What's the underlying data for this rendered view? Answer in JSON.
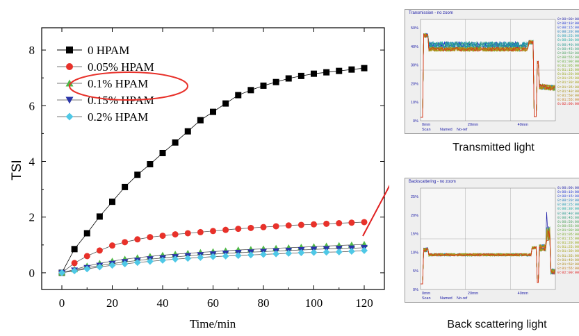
{
  "chart_data": {
    "type": "line",
    "xlabel": "Time/min",
    "ylabel": "TSI",
    "xlim": [
      -8,
      128
    ],
    "ylim": [
      -0.6,
      8.8
    ],
    "xticks": [
      0,
      20,
      40,
      60,
      80,
      100,
      120
    ],
    "yticks": [
      0,
      2,
      4,
      6,
      8
    ],
    "x": [
      0,
      5,
      10,
      15,
      20,
      25,
      30,
      35,
      40,
      45,
      50,
      55,
      60,
      65,
      70,
      75,
      80,
      85,
      90,
      95,
      100,
      105,
      110,
      115,
      120
    ],
    "series": [
      {
        "name": "0 HPAM",
        "marker": "square",
        "color": "#000000",
        "values": [
          0,
          0.85,
          1.42,
          2.02,
          2.55,
          3.08,
          3.52,
          3.9,
          4.3,
          4.68,
          5.08,
          5.48,
          5.78,
          6.08,
          6.38,
          6.56,
          6.72,
          6.85,
          6.98,
          7.07,
          7.15,
          7.2,
          7.25,
          7.3,
          7.35
        ]
      },
      {
        "name": "0.05% HPAM",
        "marker": "circle",
        "color": "#e8312a",
        "values": [
          0,
          0.35,
          0.6,
          0.8,
          0.98,
          1.1,
          1.2,
          1.28,
          1.33,
          1.38,
          1.42,
          1.46,
          1.5,
          1.54,
          1.58,
          1.61,
          1.64,
          1.67,
          1.7,
          1.72,
          1.74,
          1.76,
          1.78,
          1.8,
          1.82
        ]
      },
      {
        "name": "0.1%  HPAM",
        "marker": "triangle-up",
        "color": "#4fb848",
        "values": [
          0,
          0.12,
          0.24,
          0.34,
          0.42,
          0.49,
          0.54,
          0.59,
          0.63,
          0.67,
          0.7,
          0.73,
          0.76,
          0.79,
          0.82,
          0.84,
          0.86,
          0.88,
          0.9,
          0.92,
          0.94,
          0.96,
          0.98,
          1.0,
          1.02
        ]
      },
      {
        "name": "0.15% HPAM",
        "marker": "triangle-down",
        "color": "#2a35a8",
        "values": [
          0,
          0.09,
          0.18,
          0.26,
          0.33,
          0.39,
          0.44,
          0.49,
          0.53,
          0.57,
          0.61,
          0.64,
          0.67,
          0.7,
          0.72,
          0.74,
          0.76,
          0.78,
          0.8,
          0.82,
          0.84,
          0.86,
          0.87,
          0.88,
          0.9
        ]
      },
      {
        "name": "0.2%  HPAM",
        "marker": "diamond",
        "color": "#4fc8e6",
        "values": [
          0,
          0.07,
          0.14,
          0.21,
          0.27,
          0.32,
          0.37,
          0.41,
          0.45,
          0.49,
          0.52,
          0.55,
          0.58,
          0.6,
          0.62,
          0.64,
          0.66,
          0.68,
          0.7,
          0.72,
          0.73,
          0.74,
          0.75,
          0.77,
          0.8
        ]
      }
    ],
    "legend_position": "top-left",
    "highlight_legend_entry": "0.1%  HPAM"
  },
  "panels": {
    "transmission": {
      "title": "Transmission - no zoom",
      "yticks": [
        "50%",
        "40%",
        "30%",
        "20%",
        "10%",
        "0%"
      ],
      "xticks": [
        "0mm",
        "20mm",
        "40mm"
      ],
      "footer": [
        "Scan",
        "Named",
        "No-ref"
      ],
      "caption": "Transmitted light"
    },
    "backscattering": {
      "title": "Backscattering - no zoom",
      "yticks": [
        "25%",
        "20%",
        "15%",
        "10%",
        "5%",
        "0%"
      ],
      "xticks": [
        "0mm",
        "20mm",
        "40mm"
      ],
      "footer": [
        "Scan",
        "Named",
        "No-ref"
      ],
      "caption": "Back scattering light"
    },
    "time_legend": [
      "0:00:00:00",
      "0:00:10:00",
      "0:00:15:00",
      "0:00:20:00",
      "0:00:25:00",
      "0:00:30:00",
      "0:00:40:00",
      "0:00:45:00",
      "0:00:50:00",
      "0:00:55:00",
      "0:01:00:00",
      "0:01:05:00",
      "0:01:15:00",
      "0:01:20:00",
      "0:01:25:00",
      "0:01:30:00",
      "0:01:35:00",
      "0:01:40:00",
      "0:01:50:00",
      "0:01:55:00",
      "0:02:00:00"
    ],
    "time_colors": [
      "#1a1aa6",
      "#1a2fd0",
      "#2848d8",
      "#1a7ab8",
      "#1a9ab0",
      "#1aa6a0",
      "#2a9a90",
      "#3aa07a",
      "#4aa060",
      "#5aa64a",
      "#60aa3a",
      "#7aaa2a",
      "#8aa820",
      "#9aa81a",
      "#a8a818",
      "#a8a018",
      "#a89818",
      "#a89018",
      "#b08a18",
      "#c07a18",
      "#e02020"
    ]
  }
}
